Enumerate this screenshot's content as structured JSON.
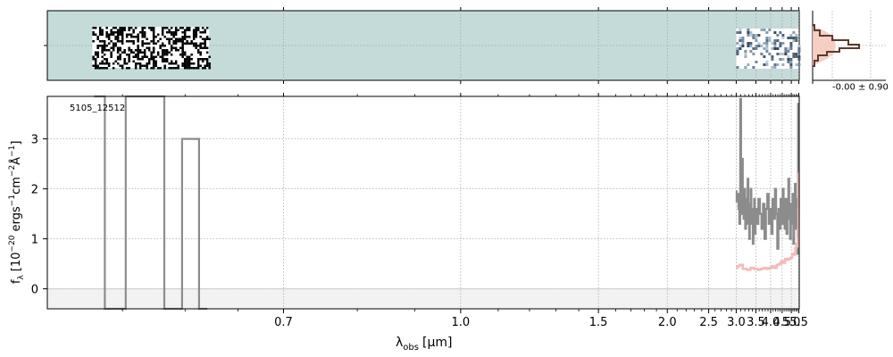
{
  "chart_data": [
    {
      "type": "heatmap",
      "panel": "2d-spectrum",
      "background_color": "#c5dbd9",
      "segments": [
        {
          "x_range": [
            0.53,
            0.62
          ],
          "style": "black-white-noise"
        },
        {
          "x_range": [
            3.0,
            5.47
          ],
          "style": "blue-grey-trace"
        }
      ]
    },
    {
      "type": "line",
      "panel": "1d-spectrum",
      "id_label": "5105_12512",
      "xlabel": "λ",
      "xlabel_sub": "obs",
      "xlabel_unit": "[μm]",
      "ylabel_main": "f",
      "ylabel_sub": "λ",
      "ylabel_text": "[10",
      "ylabel_exp1": "−20",
      "ylabel_mid": " ergs",
      "ylabel_exp2": "−1",
      "ylabel_mid2": "cm",
      "ylabel_exp3": "−2",
      "ylabel_mid3": "Å",
      "ylabel_exp4": "−1",
      "ylabel_end": "]",
      "xscale": "reciprocal",
      "xlim": [
        0.5,
        5.53
      ],
      "ylim": [
        -0.4,
        3.85
      ],
      "xticks": [
        0.7,
        1.0,
        1.5,
        2.0,
        2.5,
        3.0,
        3.5,
        4.0,
        4.5,
        5.0,
        5.5
      ],
      "xtick_labels": [
        "0.7",
        "1.0",
        "1.5",
        "2.0",
        "2.5",
        "3.0",
        "3.5",
        "4.0",
        "4.5",
        "5.0",
        "5.5"
      ],
      "yticks": [
        0,
        1,
        2,
        3
      ],
      "ytick_labels": [
        "0",
        "1",
        "2",
        "3"
      ],
      "grid": true,
      "colors": {
        "data": "#8c8c8c",
        "model": "#f4b9b9",
        "zero_band": "#f2f2f2"
      },
      "series": [
        {
          "role": "flux",
          "x": [
            0.53,
            0.545,
            0.56,
            0.575,
            0.59,
            0.605,
            0.62
          ],
          "y": [
            3.9,
            -0.4,
            3.9,
            3.85,
            -0.4,
            3.0,
            -0.4
          ]
        },
        {
          "role": "flux",
          "x": [
            3.0,
            3.02,
            3.04,
            3.06,
            3.08,
            3.1,
            3.12,
            3.14,
            3.16,
            3.18,
            3.2,
            3.22,
            3.24,
            3.26,
            3.28,
            3.3,
            3.32,
            3.34,
            3.36,
            3.38,
            3.4,
            3.42,
            3.44,
            3.46,
            3.48,
            3.5,
            3.55,
            3.6,
            3.65,
            3.7,
            3.75,
            3.8,
            3.85,
            3.9,
            3.95,
            4.0,
            4.05,
            4.1,
            4.15,
            4.2,
            4.25,
            4.3,
            4.35,
            4.4,
            4.45,
            4.5,
            4.55,
            4.6,
            4.65,
            4.7,
            4.75,
            4.8,
            4.85,
            4.9,
            4.95,
            5.0,
            5.05,
            5.1,
            5.15,
            5.2,
            5.25,
            5.3,
            5.35,
            5.4,
            5.43,
            5.46,
            5.48
          ],
          "y": [
            1.95,
            1.75,
            1.9,
            1.6,
            1.3,
            3.8,
            1.5,
            2.6,
            1.9,
            1.4,
            2.0,
            1.2,
            1.8,
            1.3,
            2.2,
            1.5,
            1.0,
            1.7,
            2.0,
            1.3,
            1.6,
            0.9,
            1.4,
            1.8,
            1.1,
            1.6,
            1.3,
            1.8,
            1.5,
            1.2,
            1.7,
            1.0,
            1.6,
            1.9,
            1.3,
            1.6,
            1.1,
            1.8,
            1.4,
            2.0,
            1.5,
            0.8,
            1.6,
            1.2,
            1.8,
            1.3,
            2.0,
            1.5,
            1.2,
            1.8,
            1.1,
            1.6,
            2.2,
            1.4,
            1.0,
            1.7,
            1.3,
            1.9,
            0.9,
            1.6,
            2.1,
            1.2,
            1.5,
            1.8,
            0.7,
            3.7,
            1.3
          ]
        },
        {
          "role": "model",
          "x": [
            3.0,
            3.05,
            3.1,
            3.2,
            3.3,
            3.4,
            3.5,
            3.6,
            3.7,
            3.8,
            3.9,
            4.0,
            4.1,
            4.2,
            4.3,
            4.4,
            4.5,
            4.6,
            4.7,
            4.8,
            4.9,
            5.0,
            5.1,
            5.2,
            5.3,
            5.35,
            5.4,
            5.44,
            5.46,
            5.48,
            5.5
          ],
          "y": [
            0.42,
            0.45,
            0.48,
            0.4,
            0.38,
            0.42,
            0.4,
            0.38,
            0.4,
            0.42,
            0.4,
            0.42,
            0.45,
            0.42,
            0.48,
            0.5,
            0.55,
            0.52,
            0.6,
            0.58,
            0.6,
            0.62,
            0.7,
            0.68,
            0.82,
            0.9,
            0.85,
            1.0,
            1.2,
            1.6,
            2.3
          ]
        }
      ]
    },
    {
      "type": "line",
      "panel": "residual-histogram",
      "annotation": "-0.00 ± 0.90",
      "colors": {
        "hist": "#5a3a30",
        "fill": "#f6c9bc"
      }
    }
  ]
}
